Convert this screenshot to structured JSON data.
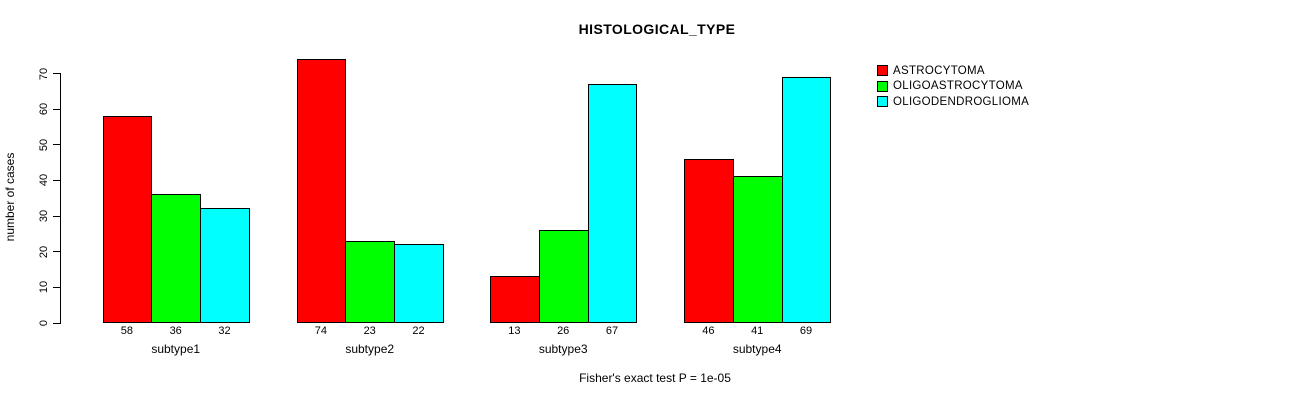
{
  "chart_data": {
    "type": "bar",
    "title": "HISTOLOGICAL_TYPE",
    "xlabel": "",
    "ylabel": "number of cases",
    "footer": "Fisher's exact test P = 1e-05",
    "categories": [
      "subtype1",
      "subtype2",
      "subtype3",
      "subtype4"
    ],
    "series": [
      {
        "name": "ASTROCYTOMA",
        "color": "#ff0000",
        "values": [
          58,
          74,
          13,
          46
        ]
      },
      {
        "name": "OLIGOASTROCYTOMA",
        "color": "#00ff00",
        "values": [
          36,
          23,
          26,
          41
        ]
      },
      {
        "name": "OLIGODENDROGLIOMA",
        "color": "#00ffff",
        "values": [
          32,
          22,
          67,
          69
        ]
      }
    ],
    "yticks": [
      0,
      10,
      20,
      30,
      40,
      50,
      60,
      70
    ],
    "ylim": [
      0,
      74
    ],
    "grid": false,
    "bar_value_labels": true,
    "legend_position": "top-right",
    "background": "#ffffff"
  }
}
